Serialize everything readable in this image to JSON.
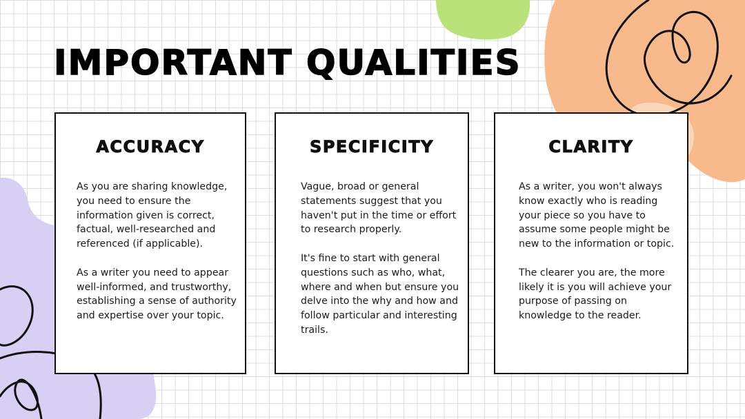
{
  "slide": {
    "title": "IMPORTANT QUALITIES",
    "colors": {
      "background": "#ffffff",
      "grid": "#dcdcdc",
      "green_blob": "#b9e27a",
      "orange_blob": "#f8b98c",
      "purple_blob": "#d8cff4",
      "ink": "#111111"
    },
    "cards": [
      {
        "title": "ACCURACY",
        "paragraphs": [
          "As you are sharing knowledge, you need to ensure the information given is correct, factual, well-researched and referenced (if applicable).",
          "As a writer you need to appear well-informed, and trustworthy, establishing a sense of authority and expertise over your topic."
        ]
      },
      {
        "title": "SPECIFICITY",
        "paragraphs": [
          "Vague, broad or general statements suggest that you haven't put in the time or effort to research properly.",
          "It's fine to start with general questions such as who, what, where and when but ensure you delve into the why and how and follow particular and interesting trails."
        ]
      },
      {
        "title": "CLARITY",
        "paragraphs": [
          "As a writer, you won't always know exactly who is reading your piece so you have to assume some people might be new to the information or topic.",
          "The clearer you are, the more likely it is you will achieve your purpose of passing on knowledge to the reader."
        ]
      }
    ]
  }
}
